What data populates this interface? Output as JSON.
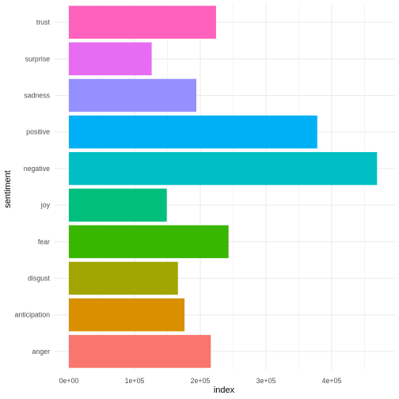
{
  "chart_data": {
    "type": "bar",
    "orientation": "horizontal",
    "title": "",
    "xlabel": "index",
    "ylabel": "sentiment",
    "categories": [
      "anger",
      "anticipation",
      "disgust",
      "fear",
      "joy",
      "negative",
      "positive",
      "sadness",
      "surprise",
      "trust"
    ],
    "values": [
      216000,
      176000,
      166000,
      243000,
      149000,
      469000,
      378000,
      194000,
      126000,
      224000
    ],
    "colors": [
      "#F8766D",
      "#D89000",
      "#A3A500",
      "#39B600",
      "#00BF7D",
      "#00BFC4",
      "#00B0F6",
      "#9590FF",
      "#E76BF3",
      "#FF62BC"
    ],
    "xlim": [
      0,
      480000
    ],
    "x_ticks": [
      0,
      100000,
      200000,
      300000,
      400000
    ],
    "x_tick_labels": [
      "0e+00",
      "1e+05",
      "2e+05",
      "3e+05",
      "4e+05"
    ],
    "grid": true,
    "legend": "none",
    "theme": "minimal"
  }
}
